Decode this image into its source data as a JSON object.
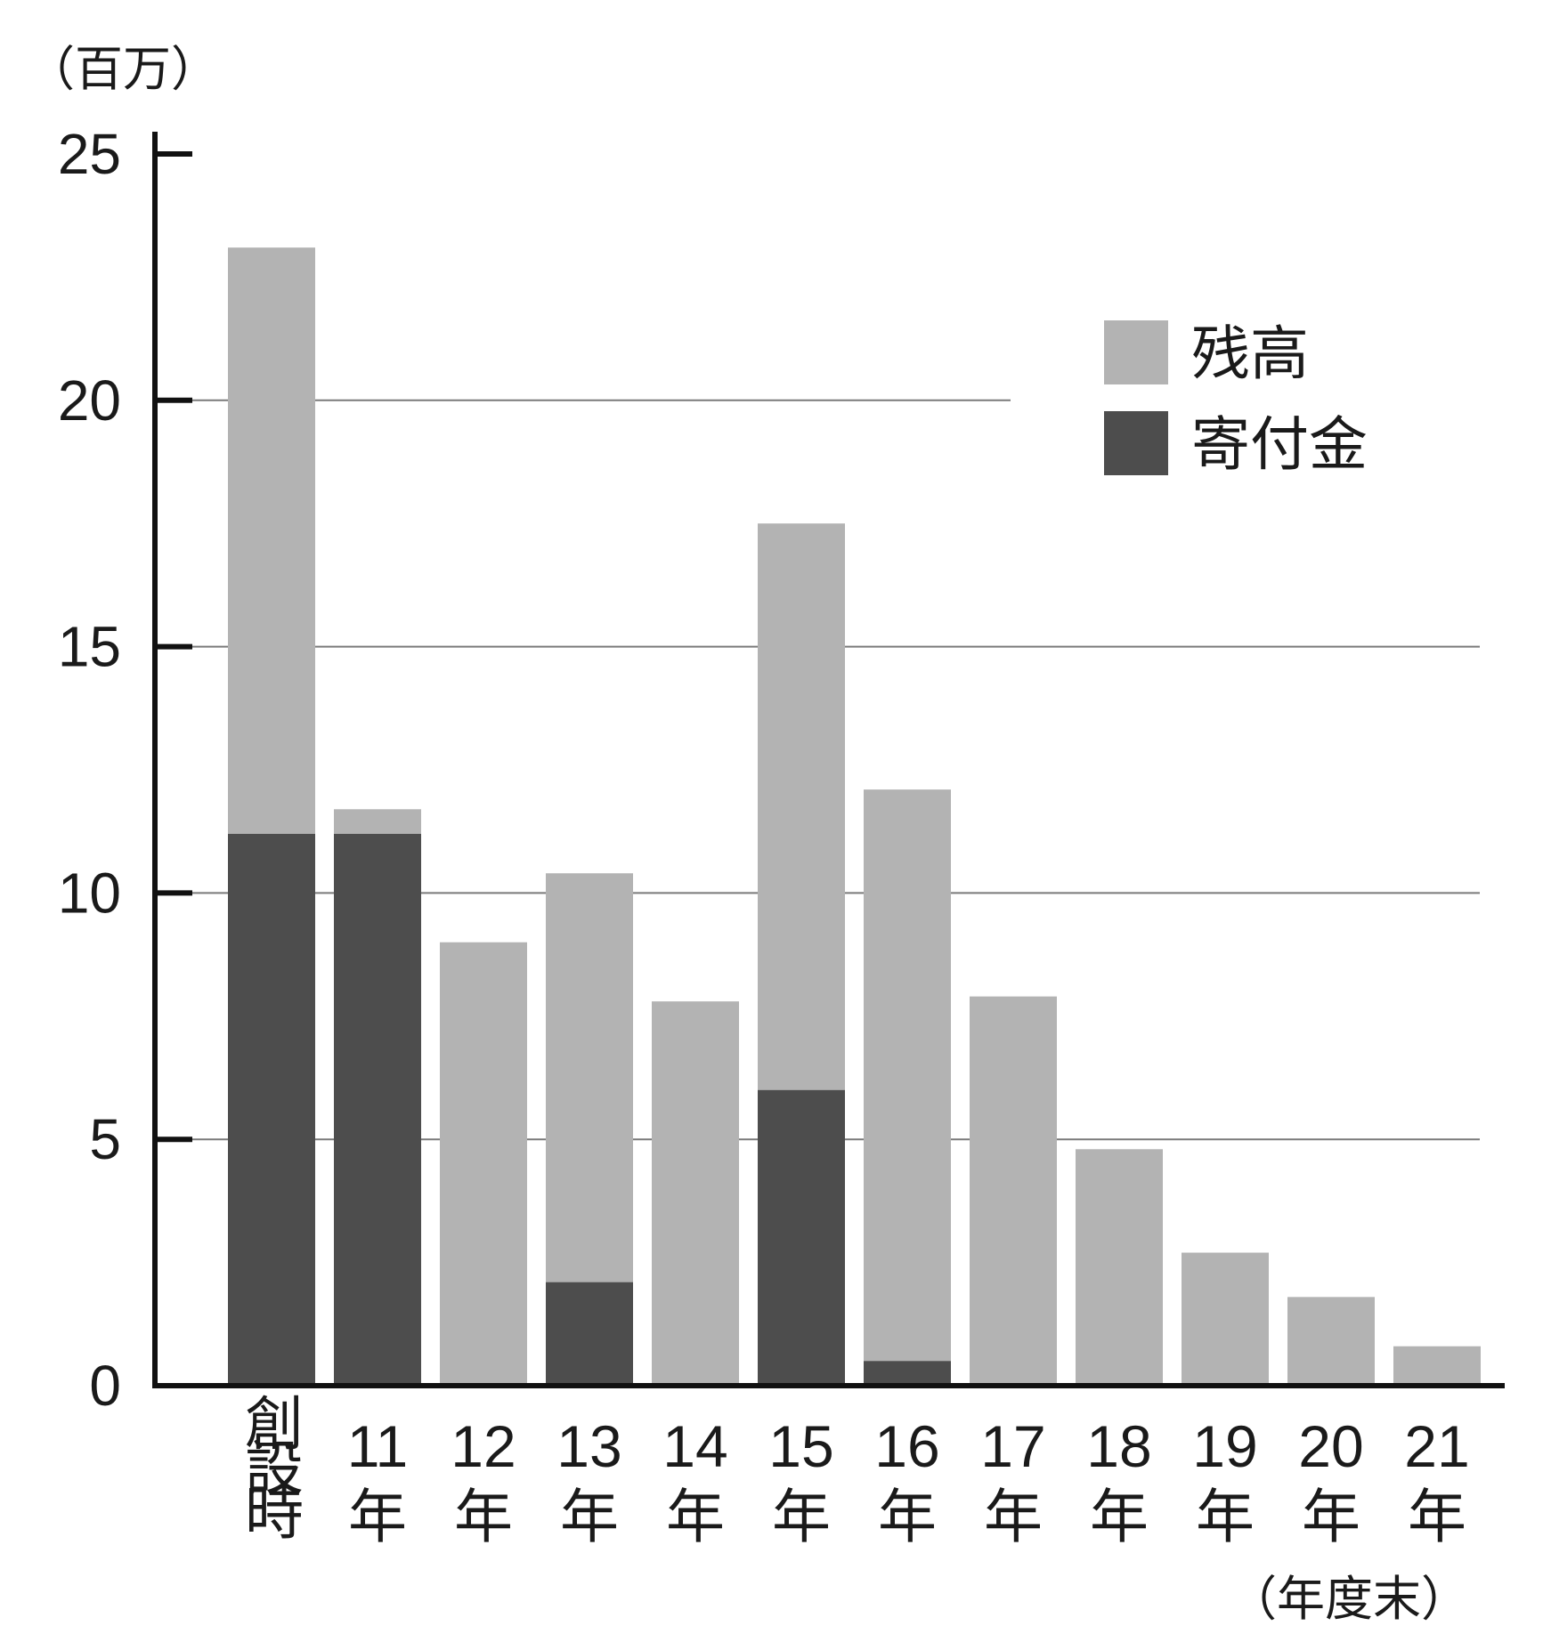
{
  "chart_data": {
    "type": "bar",
    "stacked": "overlay",
    "y_unit_label": "（百万）",
    "x_unit_label": "（年度末）",
    "categories": [
      [
        "創",
        "設",
        "時"
      ],
      [
        "11",
        "年"
      ],
      [
        "12",
        "年"
      ],
      [
        "13",
        "年"
      ],
      [
        "14",
        "年"
      ],
      [
        "15",
        "年"
      ],
      [
        "16",
        "年"
      ],
      [
        "17",
        "年"
      ],
      [
        "18",
        "年"
      ],
      [
        "19",
        "年"
      ],
      [
        "20",
        "年"
      ],
      [
        "21",
        "年"
      ]
    ],
    "series": [
      {
        "name": "残高",
        "color": "#b3b3b3",
        "values": [
          23.1,
          11.7,
          9.0,
          10.4,
          7.8,
          17.5,
          12.1,
          7.9,
          4.8,
          2.7,
          1.8,
          0.8
        ]
      },
      {
        "name": "寄付金",
        "color": "#4d4d4d",
        "values": [
          11.2,
          11.2,
          0,
          2.1,
          0,
          6.0,
          0.5,
          0,
          0,
          0,
          0,
          0
        ]
      }
    ],
    "ylim": [
      0,
      25
    ],
    "yticks": [
      0,
      5,
      10,
      15,
      20,
      25
    ],
    "grid": true,
    "legend_position": "top-right"
  }
}
